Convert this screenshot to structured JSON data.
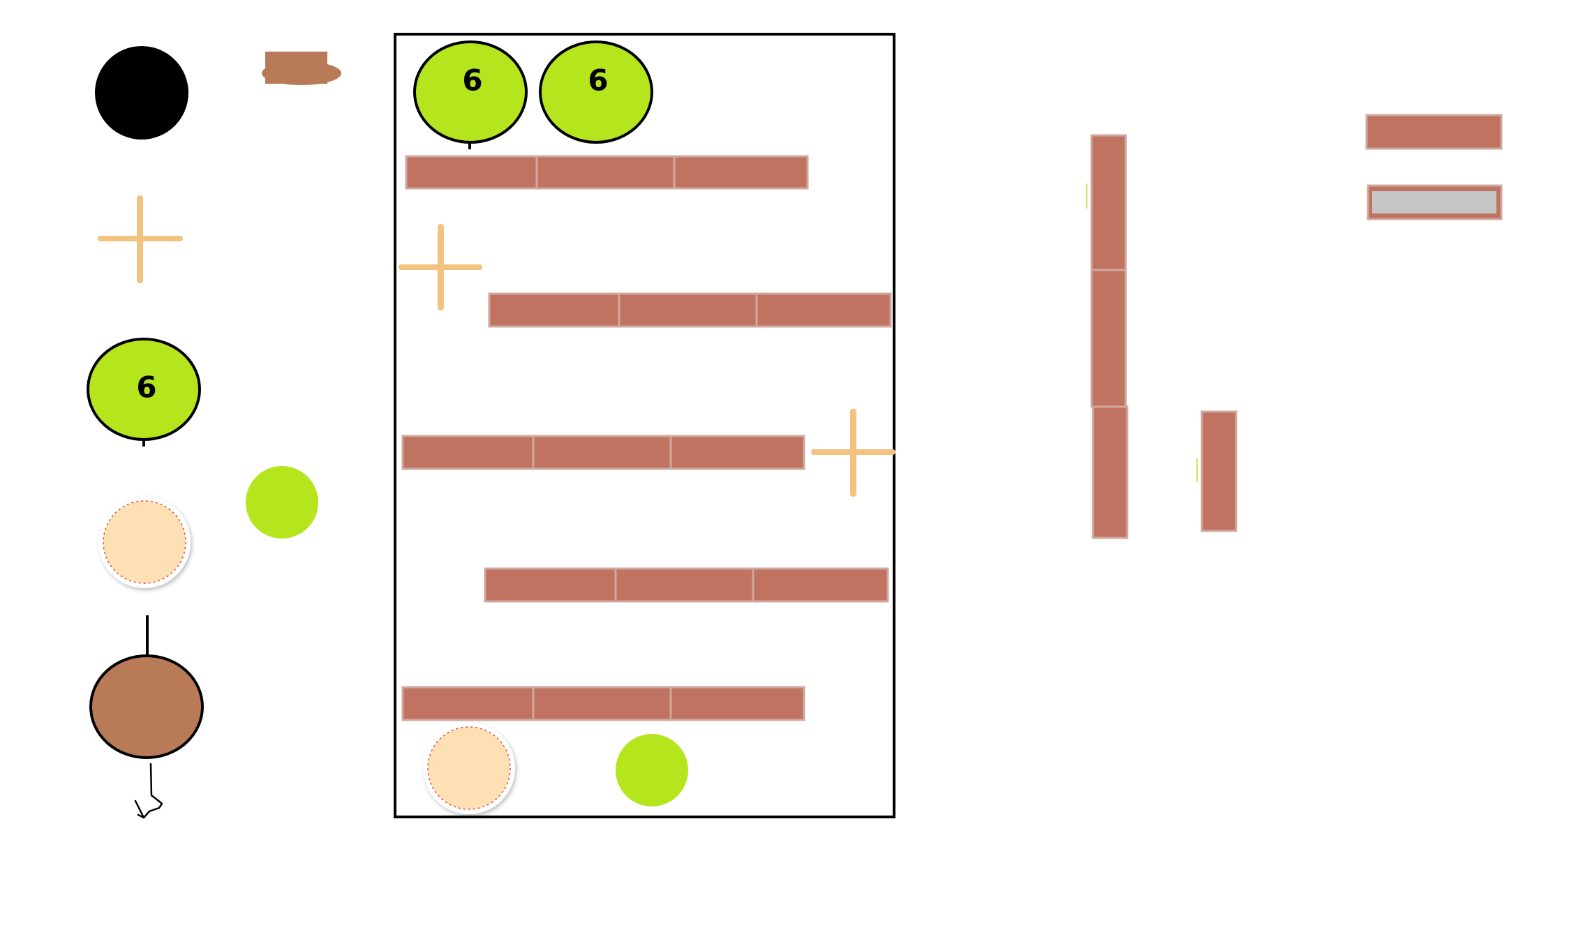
{
  "colors": {
    "brick": "#c07360",
    "brick_border": "#cfa89f",
    "lime": "#b5e61d",
    "black": "#000000",
    "peach": "#fde1b4",
    "peach_dots": "#e84a3c",
    "brown": "#b97a57",
    "star": "#f2c27e",
    "gray_fill": "#c6c6c6"
  },
  "palette": {
    "black_ball": "black-ball",
    "propeller": "propeller",
    "numbered_ball_label": "6",
    "lime_ball": "lime-ball",
    "peach_ball": "peach-ball",
    "brown_ball": "brown-ball",
    "cup": "cup",
    "cursor": "hand-cursor-icon"
  },
  "board": {
    "top_balls": [
      {
        "label": "6"
      },
      {
        "label": "6"
      }
    ],
    "brick_rows": 5,
    "bricks_per_row": 3,
    "propellers": 2,
    "bottom_items": [
      "peach-ball",
      "lime-ball"
    ]
  },
  "side_pieces": {
    "vertical_bricks": 4,
    "horizontal_bricks": 2
  }
}
